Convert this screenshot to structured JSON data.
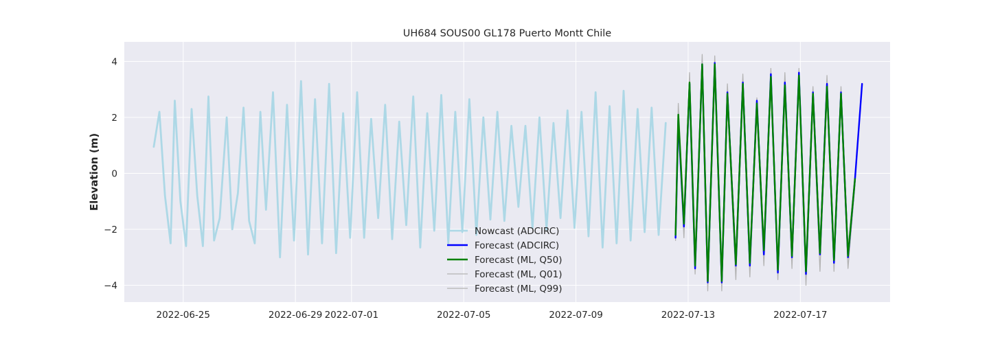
{
  "chart_data": {
    "type": "line",
    "title": "UH684 SOUS00 GL178 Puerto Montt Chile",
    "xlabel": "",
    "ylabel": "Elevation (m)",
    "x_unit": "days",
    "x_ticks": [
      {
        "x": 0,
        "label": "2022-06-25"
      },
      {
        "x": 4,
        "label": "2022-06-29"
      },
      {
        "x": 6,
        "label": "2022-07-01"
      },
      {
        "x": 10,
        "label": "2022-07-05"
      },
      {
        "x": 14,
        "label": "2022-07-09"
      },
      {
        "x": 18,
        "label": "2022-07-13"
      },
      {
        "x": 22,
        "label": "2022-07-17"
      }
    ],
    "y_ticks": [
      -4,
      -2,
      0,
      2,
      4
    ],
    "xlim": [
      -2.1,
      25.2
    ],
    "ylim": [
      -4.6,
      4.7
    ],
    "grid": true,
    "legend_position": "lower-center",
    "colors": {
      "background": "#eaeaf2",
      "grid": "#ffffff",
      "nowcast": "#add8e6",
      "forecast_adcirc": "#0000ff",
      "forecast_q50": "#008000",
      "forecast_q01": "#b3b3b3",
      "forecast_q99": "#b3b3b3"
    },
    "series": [
      {
        "name": "Nowcast (ADCIRC)",
        "key": "nowcast",
        "x": [
          -1.05,
          -0.85,
          -0.65,
          -0.45,
          -0.3,
          -0.1,
          0.1,
          0.3,
          0.5,
          0.7,
          0.9,
          1.1,
          1.3,
          1.55,
          1.75,
          1.95,
          2.15,
          2.35,
          2.55,
          2.75,
          2.95,
          3.2,
          3.45,
          3.7,
          3.95,
          4.2,
          4.45,
          4.7,
          4.95,
          5.2,
          5.45,
          5.7,
          5.95,
          6.2,
          6.45,
          6.7,
          6.95,
          7.2,
          7.45,
          7.7,
          7.95,
          8.2,
          8.45,
          8.7,
          8.95,
          9.2,
          9.45,
          9.7,
          9.95,
          10.2,
          10.45,
          10.7,
          10.95,
          11.2,
          11.45,
          11.7,
          11.95,
          12.2,
          12.45,
          12.7,
          12.95,
          13.2,
          13.45,
          13.7,
          13.95,
          14.2,
          14.45,
          14.7,
          14.95,
          15.2,
          15.45,
          15.7,
          15.95,
          16.2,
          16.45,
          16.7,
          16.95,
          17.2
        ],
        "values": [
          0.95,
          2.2,
          -0.8,
          -2.5,
          2.6,
          -1.0,
          -2.6,
          2.3,
          -0.8,
          -2.6,
          2.75,
          -2.4,
          -1.6,
          2.0,
          -2.0,
          -0.7,
          2.35,
          -1.7,
          -2.5,
          2.2,
          -1.3,
          2.9,
          -3.0,
          2.45,
          -2.4,
          3.3,
          -2.9,
          2.65,
          -2.5,
          3.2,
          -2.85,
          2.15,
          -2.3,
          2.9,
          -2.3,
          1.95,
          -1.6,
          2.45,
          -2.35,
          1.85,
          -1.85,
          2.75,
          -2.65,
          2.15,
          -2.05,
          2.8,
          -2.5,
          2.2,
          -2.1,
          2.65,
          -2.2,
          2.0,
          -1.65,
          2.2,
          -1.7,
          1.7,
          -1.2,
          1.7,
          -1.95,
          2.0,
          -2.0,
          1.8,
          -1.6,
          2.25,
          -1.95,
          2.2,
          -2.25,
          2.9,
          -2.65,
          2.4,
          -2.5,
          2.95,
          -2.4,
          2.3,
          -2.1,
          2.35,
          -2.2,
          1.8
        ]
      },
      {
        "name": "Forecast (ADCIRC)",
        "key": "forecast_adcirc",
        "x": [
          17.55,
          17.65,
          17.85,
          18.05,
          18.25,
          18.5,
          18.7,
          18.95,
          19.2,
          19.4,
          19.7,
          19.95,
          20.2,
          20.45,
          20.7,
          20.95,
          21.2,
          21.45,
          21.7,
          21.95,
          22.2,
          22.45,
          22.7,
          22.95,
          23.2,
          23.45,
          23.7,
          23.95,
          24.2
        ],
        "values": [
          -2.3,
          1.9,
          -1.9,
          3.2,
          -3.4,
          3.9,
          -3.9,
          3.95,
          -3.9,
          2.9,
          -3.3,
          3.25,
          -3.3,
          2.6,
          -2.9,
          3.55,
          -3.55,
          3.25,
          -3.0,
          3.6,
          -3.6,
          2.9,
          -2.9,
          3.2,
          -3.2,
          2.9,
          -3.0,
          -0.2,
          3.2
        ]
      },
      {
        "name": "Forecast (ML, Q50)",
        "key": "forecast_q50",
        "x": [
          17.55,
          17.65,
          17.85,
          18.05,
          18.25,
          18.5,
          18.7,
          18.95,
          19.2,
          19.4,
          19.7,
          19.95,
          20.2,
          20.45,
          20.7,
          20.95,
          21.2,
          21.45,
          21.7,
          21.95,
          22.2,
          22.45,
          22.7,
          22.95,
          23.2,
          23.45,
          23.7,
          23.95
        ],
        "values": [
          -2.2,
          2.1,
          -1.8,
          3.25,
          -3.3,
          3.9,
          -3.85,
          3.9,
          -3.85,
          2.85,
          -3.25,
          3.2,
          -3.2,
          2.5,
          -2.75,
          3.45,
          -3.45,
          3.15,
          -2.95,
          3.5,
          -3.5,
          2.85,
          -2.85,
          3.1,
          -3.1,
          2.85,
          -2.95,
          -0.2
        ]
      },
      {
        "name": "Forecast (ML, Q01)",
        "key": "forecast_q01",
        "x": [
          17.55,
          17.65,
          17.85,
          18.05,
          18.25,
          18.5,
          18.7,
          18.95,
          19.2,
          19.4,
          19.7,
          19.95,
          20.2,
          20.45,
          20.7,
          20.95,
          21.2,
          21.45,
          21.7,
          21.95,
          22.2,
          22.45,
          22.7,
          22.95,
          23.2,
          23.45,
          23.7,
          23.95
        ],
        "values": [
          -2.4,
          1.8,
          -2.3,
          3.0,
          -3.6,
          3.8,
          -4.2,
          3.7,
          -4.2,
          2.6,
          -3.8,
          3.0,
          -3.7,
          2.3,
          -3.3,
          3.2,
          -3.8,
          3.0,
          -3.4,
          3.4,
          -4.0,
          2.6,
          -3.5,
          3.0,
          -3.5,
          2.6,
          -3.4,
          -0.4
        ]
      },
      {
        "name": "Forecast (ML, Q99)",
        "key": "forecast_q99",
        "x": [
          17.55,
          17.65,
          17.85,
          18.05,
          18.25,
          18.5,
          18.7,
          18.95,
          19.2,
          19.4,
          19.7,
          19.95,
          20.2,
          20.45,
          20.7,
          20.95,
          21.2,
          21.45,
          21.7,
          21.95,
          22.2,
          22.45,
          22.7,
          22.95,
          23.2,
          23.45,
          23.7,
          23.95
        ],
        "values": [
          -2.0,
          2.5,
          -1.6,
          3.6,
          -3.1,
          4.25,
          -3.6,
          4.2,
          -3.6,
          3.2,
          -3.0,
          3.55,
          -3.0,
          2.7,
          -2.5,
          3.75,
          -3.3,
          3.6,
          -2.7,
          3.75,
          -3.3,
          3.1,
          -2.6,
          3.5,
          -2.9,
          3.1,
          -2.7,
          0.0
        ]
      }
    ]
  }
}
